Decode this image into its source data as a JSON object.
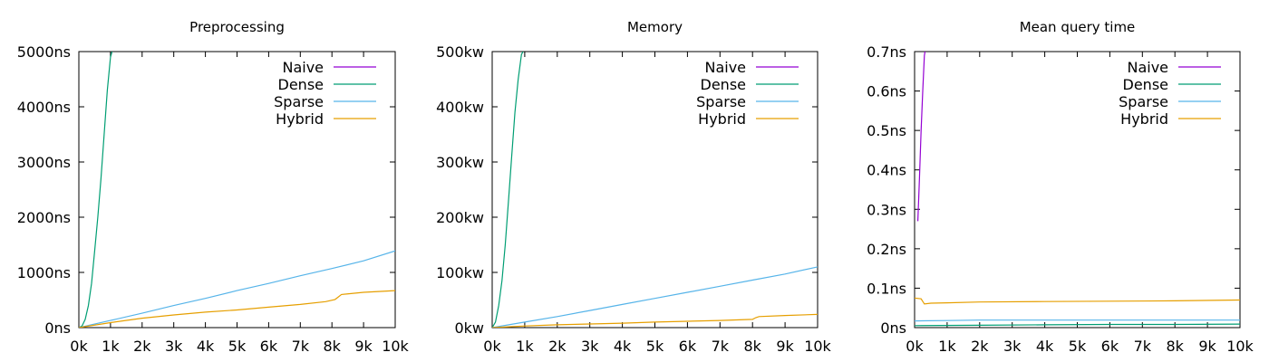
{
  "chart_data": [
    {
      "type": "line",
      "title": "Preprocessing",
      "xlim": [
        0,
        10000
      ],
      "ylim": [
        0,
        5000
      ],
      "x_ticks": [
        "0k",
        "1k",
        "2k",
        "3k",
        "4k",
        "5k",
        "6k",
        "7k",
        "8k",
        "9k",
        "10k"
      ],
      "y_ticks": [
        "0ns",
        "1000ns",
        "2000ns",
        "3000ns",
        "4000ns",
        "5000ns"
      ],
      "grid": false,
      "legend_position": "top-right",
      "series": [
        {
          "name": "Naive",
          "color": "#9400d3",
          "points": []
        },
        {
          "name": "Dense",
          "color": "#009e73",
          "points": [
            [
              0,
              0
            ],
            [
              100,
              30
            ],
            [
              200,
              150
            ],
            [
              300,
              400
            ],
            [
              400,
              800
            ],
            [
              500,
              1400
            ],
            [
              600,
              2000
            ],
            [
              700,
              2700
            ],
            [
              800,
              3500
            ],
            [
              900,
              4300
            ],
            [
              1000,
              4900
            ],
            [
              1050,
              5000
            ]
          ]
        },
        {
          "name": "Sparse",
          "color": "#56b4e9",
          "points": [
            [
              0,
              0
            ],
            [
              1000,
              130
            ],
            [
              2000,
              260
            ],
            [
              3000,
              400
            ],
            [
              4000,
              530
            ],
            [
              5000,
              670
            ],
            [
              6000,
              800
            ],
            [
              7000,
              940
            ],
            [
              8000,
              1070
            ],
            [
              9000,
              1210
            ],
            [
              10000,
              1390
            ]
          ]
        },
        {
          "name": "Hybrid",
          "color": "#e69f00",
          "points": [
            [
              0,
              0
            ],
            [
              1000,
              90
            ],
            [
              2000,
              170
            ],
            [
              3000,
              230
            ],
            [
              4000,
              280
            ],
            [
              5000,
              320
            ],
            [
              6000,
              370
            ],
            [
              7000,
              420
            ],
            [
              7800,
              470
            ],
            [
              8100,
              510
            ],
            [
              8300,
              600
            ],
            [
              9000,
              640
            ],
            [
              10000,
              670
            ]
          ]
        }
      ]
    },
    {
      "type": "line",
      "title": "Memory",
      "xlim": [
        0,
        10000
      ],
      "ylim": [
        0,
        500000
      ],
      "x_ticks": [
        "0k",
        "1k",
        "2k",
        "3k",
        "4k",
        "5k",
        "6k",
        "7k",
        "8k",
        "9k",
        "10k"
      ],
      "y_ticks": [
        "0kw",
        "100kw",
        "200kw",
        "300kw",
        "400kw",
        "500kw"
      ],
      "grid": false,
      "legend_position": "top-right",
      "series": [
        {
          "name": "Naive",
          "color": "#9400d3",
          "points": []
        },
        {
          "name": "Dense",
          "color": "#009e73",
          "points": [
            [
              0,
              0
            ],
            [
              100,
              10000
            ],
            [
              200,
              40000
            ],
            [
              300,
              85000
            ],
            [
              400,
              150000
            ],
            [
              500,
              230000
            ],
            [
              600,
              310000
            ],
            [
              700,
              390000
            ],
            [
              800,
              450000
            ],
            [
              900,
              495000
            ],
            [
              950,
              500000
            ]
          ]
        },
        {
          "name": "Sparse",
          "color": "#56b4e9",
          "points": [
            [
              0,
              0
            ],
            [
              1000,
              10000
            ],
            [
              2000,
              20000
            ],
            [
              3000,
              31000
            ],
            [
              4000,
              42000
            ],
            [
              5000,
              53000
            ],
            [
              6000,
              64000
            ],
            [
              7000,
              75000
            ],
            [
              8000,
              86000
            ],
            [
              9000,
              97000
            ],
            [
              10000,
              110000
            ]
          ]
        },
        {
          "name": "Hybrid",
          "color": "#e69f00",
          "points": [
            [
              0,
              0
            ],
            [
              1000,
              3000
            ],
            [
              2000,
              5000
            ],
            [
              3000,
              6500
            ],
            [
              4000,
              8000
            ],
            [
              5000,
              10000
            ],
            [
              6000,
              11500
            ],
            [
              7000,
              13000
            ],
            [
              8000,
              15000
            ],
            [
              8100,
              18000
            ],
            [
              8200,
              20000
            ],
            [
              9000,
              22000
            ],
            [
              10000,
              24000
            ]
          ]
        }
      ]
    },
    {
      "type": "line",
      "title": "Mean query time",
      "xlim": [
        0,
        10000
      ],
      "ylim": [
        0,
        0.7
      ],
      "x_ticks": [
        "0k",
        "1k",
        "2k",
        "3k",
        "4k",
        "5k",
        "6k",
        "7k",
        "8k",
        "9k",
        "10k"
      ],
      "y_ticks": [
        "0ns",
        "0.1ns",
        "0.2ns",
        "0.3ns",
        "0.4ns",
        "0.5ns",
        "0.6ns",
        "0.7ns"
      ],
      "grid": false,
      "legend_position": "top-right",
      "series": [
        {
          "name": "Naive",
          "color": "#9400d3",
          "points": [
            [
              100,
              0.27
            ],
            [
              150,
              0.38
            ],
            [
              200,
              0.5
            ],
            [
              250,
              0.6
            ],
            [
              300,
              0.69
            ],
            [
              320,
              0.7
            ]
          ]
        },
        {
          "name": "Dense",
          "color": "#009e73",
          "points": [
            [
              0,
              0.005
            ],
            [
              2000,
              0.006
            ],
            [
              4000,
              0.007
            ],
            [
              6000,
              0.008
            ],
            [
              8000,
              0.008
            ],
            [
              10000,
              0.009
            ]
          ]
        },
        {
          "name": "Sparse",
          "color": "#56b4e9",
          "points": [
            [
              0,
              0.017
            ],
            [
              1000,
              0.018
            ],
            [
              2000,
              0.019
            ],
            [
              4000,
              0.019
            ],
            [
              6000,
              0.019
            ],
            [
              8000,
              0.019
            ],
            [
              10000,
              0.019
            ]
          ]
        },
        {
          "name": "Hybrid",
          "color": "#e69f00",
          "points": [
            [
              0,
              0.075
            ],
            [
              200,
              0.073
            ],
            [
              300,
              0.06
            ],
            [
              500,
              0.062
            ],
            [
              1000,
              0.063
            ],
            [
              2000,
              0.065
            ],
            [
              4000,
              0.066
            ],
            [
              6000,
              0.067
            ],
            [
              8000,
              0.068
            ],
            [
              10000,
              0.07
            ]
          ]
        }
      ]
    }
  ]
}
